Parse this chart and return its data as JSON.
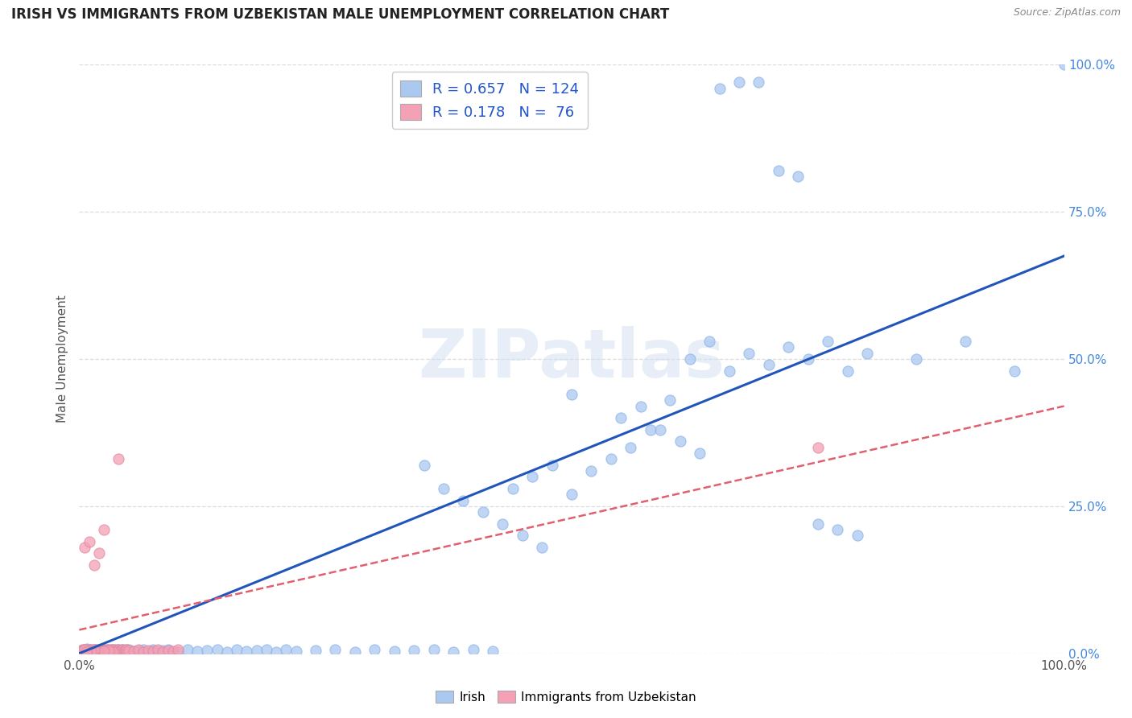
{
  "title": "IRISH VS IMMIGRANTS FROM UZBEKISTAN MALE UNEMPLOYMENT CORRELATION CHART",
  "source": "Source: ZipAtlas.com",
  "ylabel": "Male Unemployment",
  "xlim": [
    0,
    1.0
  ],
  "ylim": [
    0,
    1.0
  ],
  "ytick_labels": [
    "0.0%",
    "25.0%",
    "50.0%",
    "75.0%",
    "100.0%"
  ],
  "ytick_positions": [
    0.0,
    0.25,
    0.5,
    0.75,
    1.0
  ],
  "legend_labels": [
    "Irish",
    "Immigrants from Uzbekistan"
  ],
  "irish_color": "#aac8f0",
  "uzbek_color": "#f4a0b5",
  "irish_line_color": "#2255bb",
  "uzbek_line_color": "#e06070",
  "irish_R": 0.657,
  "irish_N": 124,
  "uzbek_R": 0.178,
  "uzbek_N": 76,
  "watermark": "ZIPatlas",
  "background_color": "#ffffff",
  "grid_color": "#dddddd",
  "title_color": "#222222",
  "axis_label_color": "#555555",
  "right_ytick_color": "#4488dd",
  "irish_line_x0": 0.0,
  "irish_line_y0": 0.0,
  "irish_line_x1": 1.0,
  "irish_line_y1": 0.675,
  "uzbek_line_x0": 0.0,
  "uzbek_line_y0": 0.04,
  "uzbek_line_x1": 1.0,
  "uzbek_line_y1": 0.42,
  "irish_scatter_x": [
    0.002,
    0.003,
    0.004,
    0.005,
    0.006,
    0.007,
    0.008,
    0.009,
    0.01,
    0.011,
    0.012,
    0.013,
    0.014,
    0.015,
    0.016,
    0.017,
    0.018,
    0.019,
    0.02,
    0.021,
    0.022,
    0.023,
    0.024,
    0.025,
    0.026,
    0.027,
    0.028,
    0.029,
    0.03,
    0.031,
    0.032,
    0.033,
    0.034,
    0.035,
    0.036,
    0.037,
    0.038,
    0.039,
    0.04,
    0.041,
    0.042,
    0.043,
    0.044,
    0.045,
    0.046,
    0.047,
    0.048,
    0.049,
    0.05,
    0.055,
    0.06,
    0.065,
    0.07,
    0.075,
    0.08,
    0.085,
    0.09,
    0.1,
    0.11,
    0.12,
    0.13,
    0.14,
    0.15,
    0.16,
    0.17,
    0.18,
    0.19,
    0.2,
    0.21,
    0.22,
    0.24,
    0.26,
    0.28,
    0.3,
    0.32,
    0.34,
    0.36,
    0.38,
    0.4,
    0.42,
    0.44,
    0.46,
    0.48,
    0.5,
    0.52,
    0.54,
    0.56,
    0.58,
    0.6,
    0.62,
    0.64,
    0.66,
    0.68,
    0.7,
    0.72,
    0.74,
    0.76,
    0.78,
    0.8,
    0.85,
    0.9,
    0.95,
    1.0,
    0.35,
    0.37,
    0.39,
    0.41,
    0.43,
    0.45,
    0.47,
    0.5,
    0.55,
    0.57,
    0.59,
    0.61,
    0.63,
    0.65,
    0.67,
    0.69,
    0.71,
    0.73,
    0.75,
    0.77,
    0.79
  ],
  "irish_scatter_y": [
    0.005,
    0.003,
    0.007,
    0.004,
    0.006,
    0.005,
    0.008,
    0.003,
    0.006,
    0.004,
    0.005,
    0.007,
    0.003,
    0.006,
    0.004,
    0.005,
    0.007,
    0.003,
    0.006,
    0.004,
    0.005,
    0.007,
    0.003,
    0.006,
    0.004,
    0.005,
    0.007,
    0.003,
    0.006,
    0.004,
    0.005,
    0.007,
    0.003,
    0.006,
    0.004,
    0.005,
    0.007,
    0.003,
    0.006,
    0.004,
    0.005,
    0.007,
    0.003,
    0.006,
    0.004,
    0.005,
    0.007,
    0.003,
    0.006,
    0.004,
    0.005,
    0.007,
    0.003,
    0.006,
    0.004,
    0.005,
    0.007,
    0.003,
    0.006,
    0.004,
    0.005,
    0.007,
    0.003,
    0.006,
    0.004,
    0.005,
    0.007,
    0.003,
    0.006,
    0.004,
    0.005,
    0.007,
    0.003,
    0.006,
    0.004,
    0.005,
    0.007,
    0.003,
    0.006,
    0.004,
    0.28,
    0.3,
    0.32,
    0.27,
    0.31,
    0.33,
    0.35,
    0.38,
    0.43,
    0.5,
    0.53,
    0.48,
    0.51,
    0.49,
    0.52,
    0.5,
    0.53,
    0.48,
    0.51,
    0.5,
    0.53,
    0.48,
    1.0,
    0.32,
    0.28,
    0.26,
    0.24,
    0.22,
    0.2,
    0.18,
    0.44,
    0.4,
    0.42,
    0.38,
    0.36,
    0.34,
    0.96,
    0.97,
    0.97,
    0.82,
    0.81,
    0.22,
    0.21,
    0.2
  ],
  "uzbek_scatter_x": [
    0.001,
    0.002,
    0.003,
    0.004,
    0.005,
    0.006,
    0.007,
    0.008,
    0.009,
    0.01,
    0.011,
    0.012,
    0.013,
    0.014,
    0.015,
    0.016,
    0.017,
    0.018,
    0.019,
    0.02,
    0.021,
    0.022,
    0.023,
    0.024,
    0.025,
    0.026,
    0.027,
    0.028,
    0.029,
    0.03,
    0.031,
    0.032,
    0.033,
    0.034,
    0.035,
    0.036,
    0.037,
    0.038,
    0.039,
    0.04,
    0.041,
    0.042,
    0.043,
    0.044,
    0.045,
    0.046,
    0.047,
    0.048,
    0.049,
    0.05,
    0.055,
    0.06,
    0.065,
    0.07,
    0.075,
    0.08,
    0.085,
    0.09,
    0.095,
    0.1,
    0.005,
    0.01,
    0.015,
    0.02,
    0.025,
    0.75,
    0.04,
    0.035,
    0.03,
    0.025,
    0.015,
    0.012,
    0.008,
    0.003,
    0.005,
    0.007
  ],
  "uzbek_scatter_y": [
    0.003,
    0.005,
    0.004,
    0.006,
    0.003,
    0.005,
    0.004,
    0.006,
    0.003,
    0.005,
    0.004,
    0.006,
    0.003,
    0.005,
    0.004,
    0.006,
    0.003,
    0.005,
    0.004,
    0.006,
    0.003,
    0.005,
    0.004,
    0.006,
    0.003,
    0.005,
    0.004,
    0.006,
    0.003,
    0.005,
    0.004,
    0.006,
    0.003,
    0.005,
    0.004,
    0.006,
    0.003,
    0.005,
    0.004,
    0.006,
    0.003,
    0.005,
    0.004,
    0.006,
    0.003,
    0.005,
    0.004,
    0.006,
    0.003,
    0.005,
    0.004,
    0.006,
    0.003,
    0.005,
    0.004,
    0.006,
    0.003,
    0.005,
    0.004,
    0.006,
    0.18,
    0.19,
    0.15,
    0.17,
    0.21,
    0.35,
    0.33,
    0.003,
    0.005,
    0.004,
    0.006,
    0.003,
    0.005,
    0.004,
    0.006,
    0.003
  ]
}
